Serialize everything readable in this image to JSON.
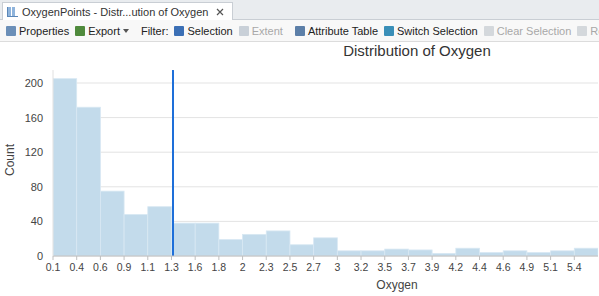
{
  "window": {
    "tab": "OxygenPoints - Distr...ution of Oxygen",
    "toolbar": [
      {
        "label": "Properties",
        "enabled": true
      },
      {
        "label": "Export",
        "enabled": true
      },
      {
        "label": "Filter:",
        "enabled": true
      },
      {
        "label": "Selection",
        "enabled": true
      },
      {
        "label": "Extent",
        "enabled": false
      },
      {
        "label": "Attribute Table",
        "enabled": true
      },
      {
        "label": "Switch Selection",
        "enabled": true
      },
      {
        "label": "Clear Selection",
        "enabled": false
      },
      {
        "label": "Rotate Chart",
        "enabled": false
      }
    ]
  },
  "chart_data": {
    "type": "histogram",
    "title": "Distribution of Oxygen",
    "x_label": "Oxygen",
    "y_label": "Count",
    "bins": [
      0.14,
      0.377,
      0.614,
      0.851,
      1.088,
      1.325,
      1.562,
      1.799,
      2.036,
      2.273,
      2.51,
      2.747,
      2.984,
      3.221,
      3.458,
      3.695,
      3.932,
      4.169,
      4.406,
      4.643,
      4.88,
      5.117,
      5.354,
      5.591
    ],
    "values": [
      205,
      172,
      75,
      48,
      57,
      38,
      38,
      19,
      25,
      29,
      13,
      21,
      6,
      6,
      8,
      7,
      3,
      9,
      4,
      6,
      4,
      6,
      9
    ],
    "color": "#c3dbeb",
    "xlim": [
      0.14,
      5.591
    ],
    "xticks": [
      {
        "value": 0.14,
        "label": "0.1"
      },
      {
        "value": 0.377,
        "label": "0.4"
      },
      {
        "value": 0.614,
        "label": "0.6"
      },
      {
        "value": 0.851,
        "label": "0.9"
      },
      {
        "value": 1.088,
        "label": "1.1"
      },
      {
        "value": 1.325,
        "label": "1.3"
      },
      {
        "value": 1.562,
        "label": "1.6"
      },
      {
        "value": 1.799,
        "label": "1.8"
      },
      {
        "value": 2.036,
        "label": "2"
      },
      {
        "value": 2.273,
        "label": "2.3"
      },
      {
        "value": 2.51,
        "label": "2.5"
      },
      {
        "value": 2.747,
        "label": "2.7"
      },
      {
        "value": 2.984,
        "label": "3"
      },
      {
        "value": 3.221,
        "label": "3.2"
      },
      {
        "value": 3.458,
        "label": "3.5"
      },
      {
        "value": 3.695,
        "label": "3.7"
      },
      {
        "value": 3.932,
        "label": "3.9"
      },
      {
        "value": 4.169,
        "label": "4.2"
      },
      {
        "value": 4.406,
        "label": "4.4"
      },
      {
        "value": 4.643,
        "label": "4.6"
      },
      {
        "value": 4.88,
        "label": "4.9"
      },
      {
        "value": 5.117,
        "label": "5.1"
      },
      {
        "value": 5.354,
        "label": "5.4"
      }
    ],
    "ylim": [
      0,
      215
    ],
    "yticks": [
      0,
      40,
      80,
      120,
      160,
      200
    ],
    "grid": true,
    "reference_line": {
      "value": 1.34,
      "color": "#1e6fd9"
    }
  }
}
